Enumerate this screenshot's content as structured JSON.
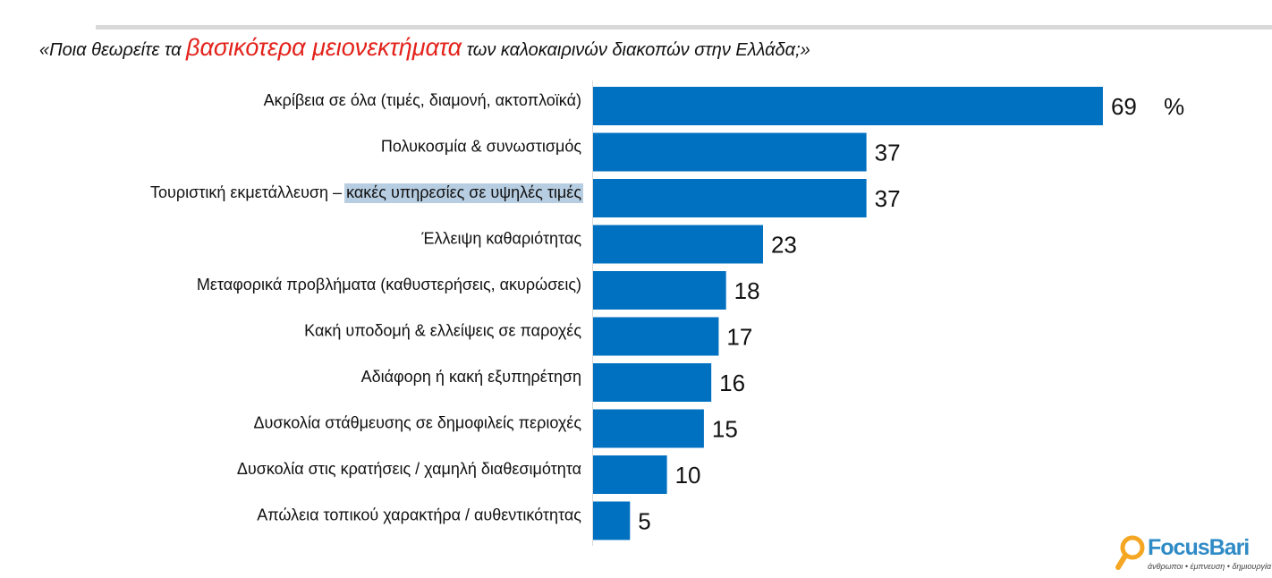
{
  "header": {
    "question_prefix": "«Ποια θεωρείτε τα",
    "question_highlight": "βασικότερα μειονεκτήματα",
    "question_suffix": "των καλοκαιρινών διακοπών στην Ελλάδα;»"
  },
  "chart_data": {
    "type": "bar",
    "orientation": "horizontal",
    "unit_label": "%",
    "categories": [
      "Ακρίβεια σε όλα (τιμές, διαμονή, ακτοπλοϊκά)",
      "Πολυκοσμία & συνωστισμός",
      "Τουριστική εκμετάλλευση – κακές υπηρεσίες σε υψηλές τιμές",
      "Έλλειψη καθαριότητας",
      "Μεταφορικά προβλήματα (καθυστερήσεις, ακυρώσεις)",
      "Κακή υποδομή & ελλείψεις σε παροχές",
      "Αδιάφορη ή κακή εξυπηρέτηση",
      "Δυσκολία στάθμευσης σε δημοφιλείς περιοχές",
      "Δυσκολία στις κρατήσεις / χαμηλή διαθεσιμότητα",
      "Απώλεια τοπικού χαρακτήρα / αυθεντικότητας"
    ],
    "values": [
      69,
      37,
      37,
      23,
      18,
      17,
      16,
      15,
      10,
      5
    ],
    "highlighted_label_part": {
      "index": 2,
      "plain": "Τουριστική εκμετάλλευση – ",
      "highlight": "κακές υπηρεσίες σε υψηλές τιμές"
    },
    "bar_color": "#0070c0",
    "grid": false,
    "legend": "none"
  },
  "logo": {
    "name": "FocusBari",
    "tagline": "άνθρωποι • έμπνευση • δημιουργία",
    "accent_color": "#f5a623"
  }
}
